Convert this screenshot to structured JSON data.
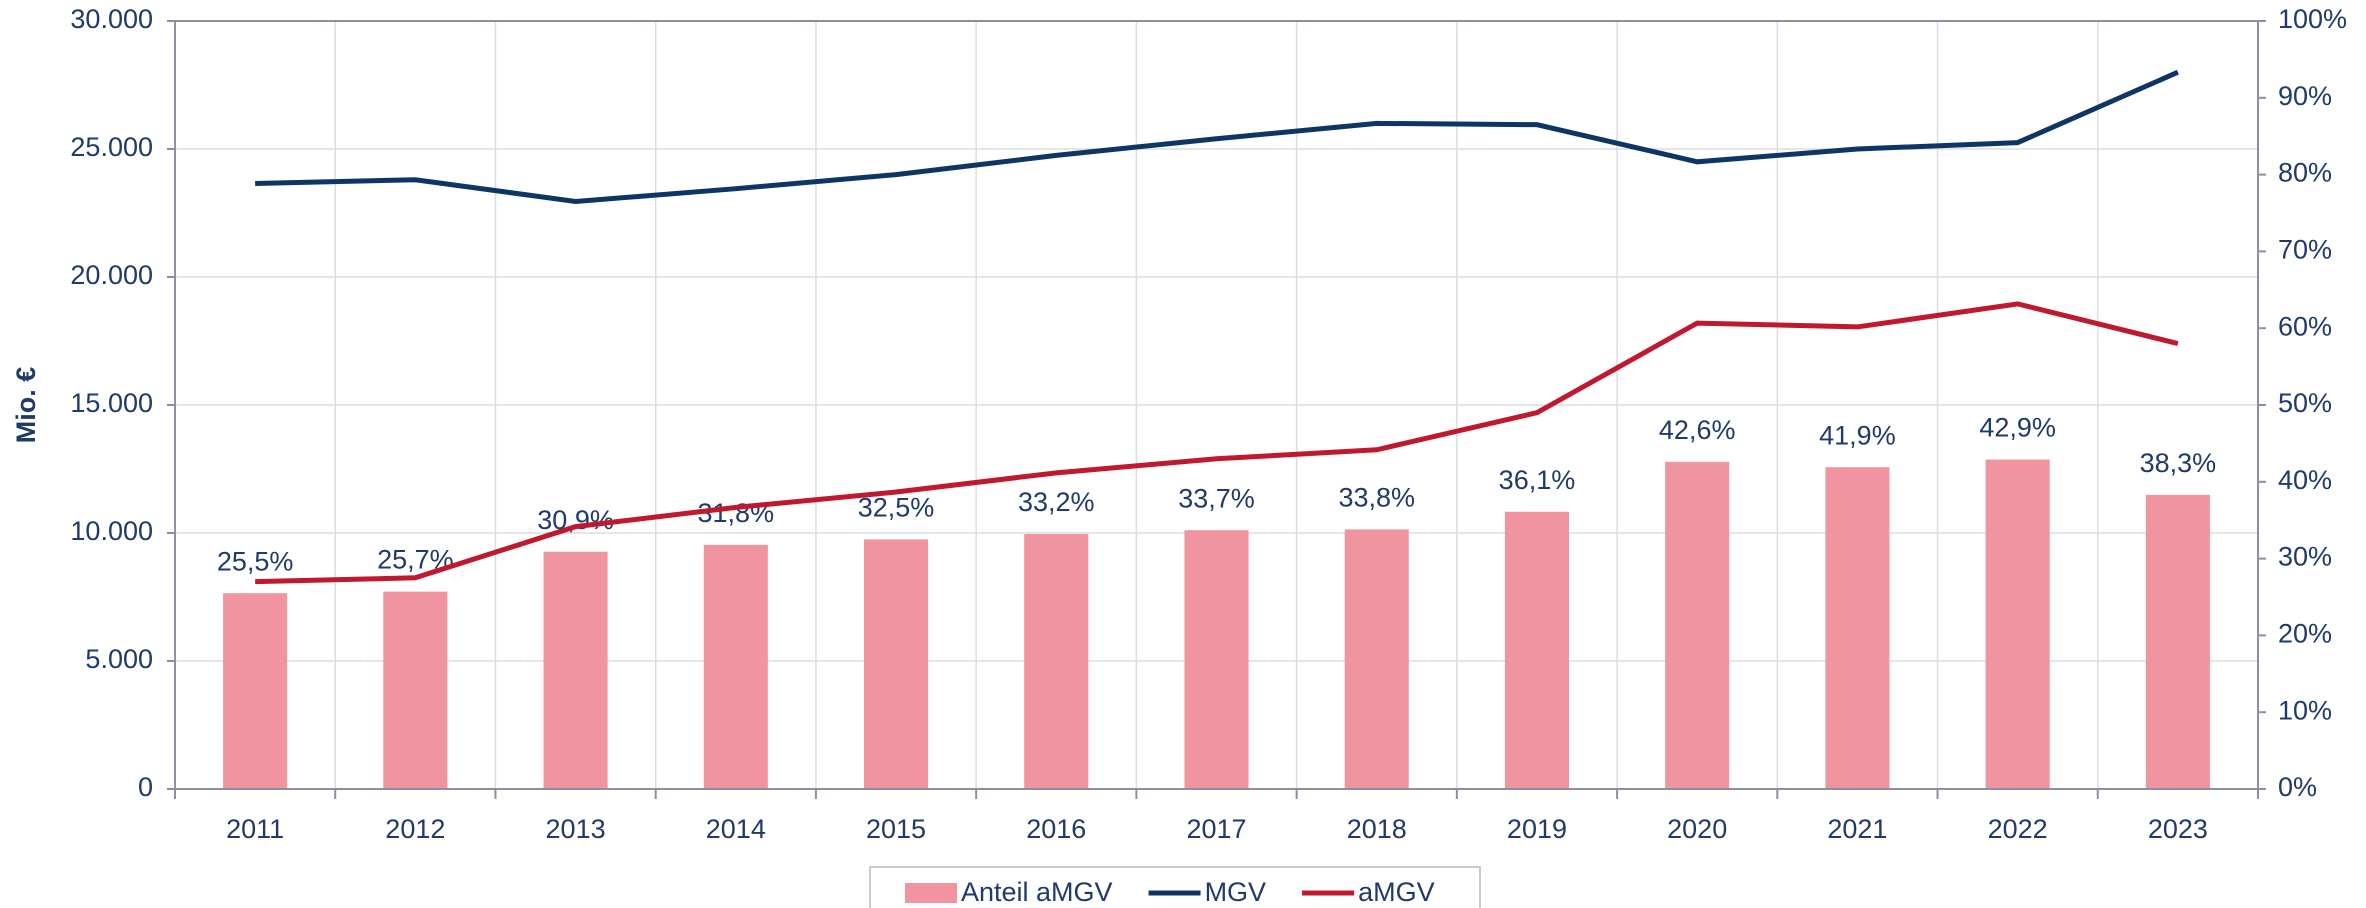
{
  "chart_data": {
    "type": "bar-line",
    "y_label": "Mio. €",
    "categories": [
      "2011",
      "2012",
      "2013",
      "2014",
      "2015",
      "2016",
      "2017",
      "2018",
      "2019",
      "2020",
      "2021",
      "2022",
      "2023"
    ],
    "series": [
      {
        "name": "Anteil aMGV",
        "type": "bar",
        "axis": "y2",
        "color": "#f0959f",
        "values": [
          25.5,
          25.7,
          30.9,
          31.8,
          32.5,
          33.2,
          33.7,
          33.8,
          36.1,
          42.6,
          41.9,
          42.9,
          38.3
        ],
        "value_labels": [
          "25,5%",
          "25,7%",
          "30,9%",
          "31,8%",
          "32,5%",
          "33,2%",
          "33,7%",
          "33,8%",
          "36,1%",
          "42,6%",
          "41,9%",
          "42,9%",
          "38,3%"
        ]
      },
      {
        "name": "MGV",
        "type": "line",
        "axis": "y",
        "color": "#0d3566",
        "values": [
          23650,
          23800,
          22950,
          23450,
          24000,
          24750,
          25400,
          26000,
          25950,
          24500,
          25000,
          25250,
          28000
        ]
      },
      {
        "name": "aMGV",
        "type": "line",
        "axis": "y",
        "color": "#c0182e",
        "values": [
          8100,
          8250,
          10250,
          11000,
          11600,
          12350,
          12900,
          13250,
          14700,
          18200,
          18050,
          18950,
          17400
        ]
      }
    ],
    "ylim": [
      0,
      30000
    ],
    "yticks": [
      0,
      {
        "value": 5000,
        "label": "5.000"
      },
      {
        "value": 10000,
        "label": "10.000"
      },
      {
        "value": 15000,
        "label": "15.000"
      },
      {
        "value": 20000,
        "label": "20.000"
      },
      {
        "value": 25000,
        "label": "25.000"
      },
      {
        "value": 30000,
        "label": "30.000"
      }
    ],
    "y2lim": [
      0,
      100
    ],
    "y2ticks": [
      {
        "value": 0,
        "label": "0%"
      },
      {
        "value": 10,
        "label": "10%"
      },
      {
        "value": 20,
        "label": "20%"
      },
      {
        "value": 30,
        "label": "30%"
      },
      {
        "value": 40,
        "label": "40%"
      },
      {
        "value": 50,
        "label": "50%"
      },
      {
        "value": 60,
        "label": "60%"
      },
      {
        "value": 70,
        "label": "70%"
      },
      {
        "value": 80,
        "label": "80%"
      },
      {
        "value": 90,
        "label": "90%"
      },
      {
        "value": 100,
        "label": "100%"
      }
    ],
    "grid": true,
    "legend": "bottom"
  }
}
